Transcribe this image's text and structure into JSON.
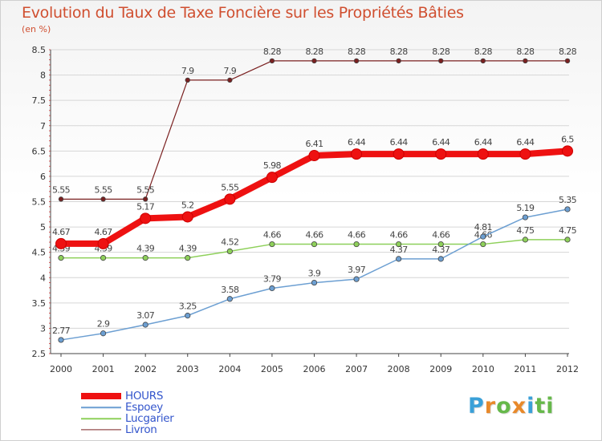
{
  "title": "Evolution du Taux de Taxe Foncière sur les Propriétés Bâties",
  "unit": "(en %)",
  "brand": "Proxiti",
  "brand_colors": [
    "#3aa0d8",
    "#e8892a",
    "#66b84a",
    "#e8892a",
    "#3aa0d8",
    "#66b84a",
    "#66b84a"
  ],
  "chart_data": {
    "type": "line",
    "title": "Evolution du Taux de Taxe Foncière sur les Propriétés Bâties",
    "ylabel": "(en %)",
    "xlabel": "",
    "ylim": [
      2.5,
      8.5
    ],
    "yticks": [
      "2.5",
      "3",
      "3.5",
      "4",
      "4.5",
      "5",
      "5.5",
      "6",
      "6.5",
      "7",
      "7.5",
      "8",
      "8.5"
    ],
    "x": [
      "2000",
      "2001",
      "2002",
      "2003",
      "2004",
      "2005",
      "2006",
      "2007",
      "2008",
      "2009",
      "2010",
      "2011",
      "2012"
    ],
    "grid": "horizontal",
    "legend_position": "bottom-left",
    "series": [
      {
        "name": "Livron",
        "color": "#7a2020",
        "width": 1.2,
        "marker": 2.8,
        "values": [
          5.55,
          5.55,
          5.55,
          7.9,
          7.9,
          8.28,
          8.28,
          8.28,
          8.28,
          8.28,
          8.28,
          8.28,
          8.28
        ],
        "labels": [
          "5.55",
          "5.55",
          "5.55",
          "7.9",
          "7.9",
          "8.28",
          "8.28",
          "8.28",
          "8.28",
          "8.28",
          "8.28",
          "8.28",
          "8.28"
        ]
      },
      {
        "name": "Lucgarier",
        "color": "#8ed05a",
        "width": 1.5,
        "marker": 3.2,
        "values": [
          4.39,
          4.39,
          4.39,
          4.39,
          4.52,
          4.66,
          4.66,
          4.66,
          4.66,
          4.66,
          4.66,
          4.75,
          4.75
        ],
        "labels": [
          "4.39",
          "4.39",
          "4.39",
          "4.39",
          "4.52",
          "4.66",
          "4.66",
          "4.66",
          "4.66",
          "4.66",
          "4.66",
          "4.75",
          "4.75"
        ]
      },
      {
        "name": "Espoey",
        "color": "#6c9fd2",
        "width": 1.5,
        "marker": 3.2,
        "values": [
          2.77,
          2.9,
          3.07,
          3.25,
          3.58,
          3.79,
          3.9,
          3.97,
          4.37,
          4.37,
          4.81,
          5.19,
          5.35
        ],
        "labels": [
          "2.77",
          "2.9",
          "3.07",
          "3.25",
          "3.58",
          "3.79",
          "3.9",
          "3.97",
          "4.37",
          "4.37",
          "4.81",
          "5.19",
          "5.35"
        ]
      },
      {
        "name": "HOURS",
        "color": "#ee1111",
        "width": 8,
        "marker": 6.5,
        "values": [
          4.67,
          4.67,
          5.17,
          5.2,
          5.55,
          5.98,
          6.41,
          6.44,
          6.44,
          6.44,
          6.44,
          6.44,
          6.5
        ],
        "labels": [
          "4.67",
          "4.67",
          "5.17",
          "5.2",
          "5.55",
          "5.98",
          "6.41",
          "6.44",
          "6.44",
          "6.44",
          "6.44",
          "6.44",
          "6.5"
        ]
      }
    ],
    "legend": [
      {
        "name": "HOURS",
        "color": "#ee1111",
        "thickness": 8
      },
      {
        "name": "Espoey",
        "color": "#6c9fd2",
        "thickness": 1.5
      },
      {
        "name": "Lucgarier",
        "color": "#8ed05a",
        "thickness": 1.5
      },
      {
        "name": "Livron",
        "color": "#7a2020",
        "thickness": 1.2
      }
    ]
  }
}
